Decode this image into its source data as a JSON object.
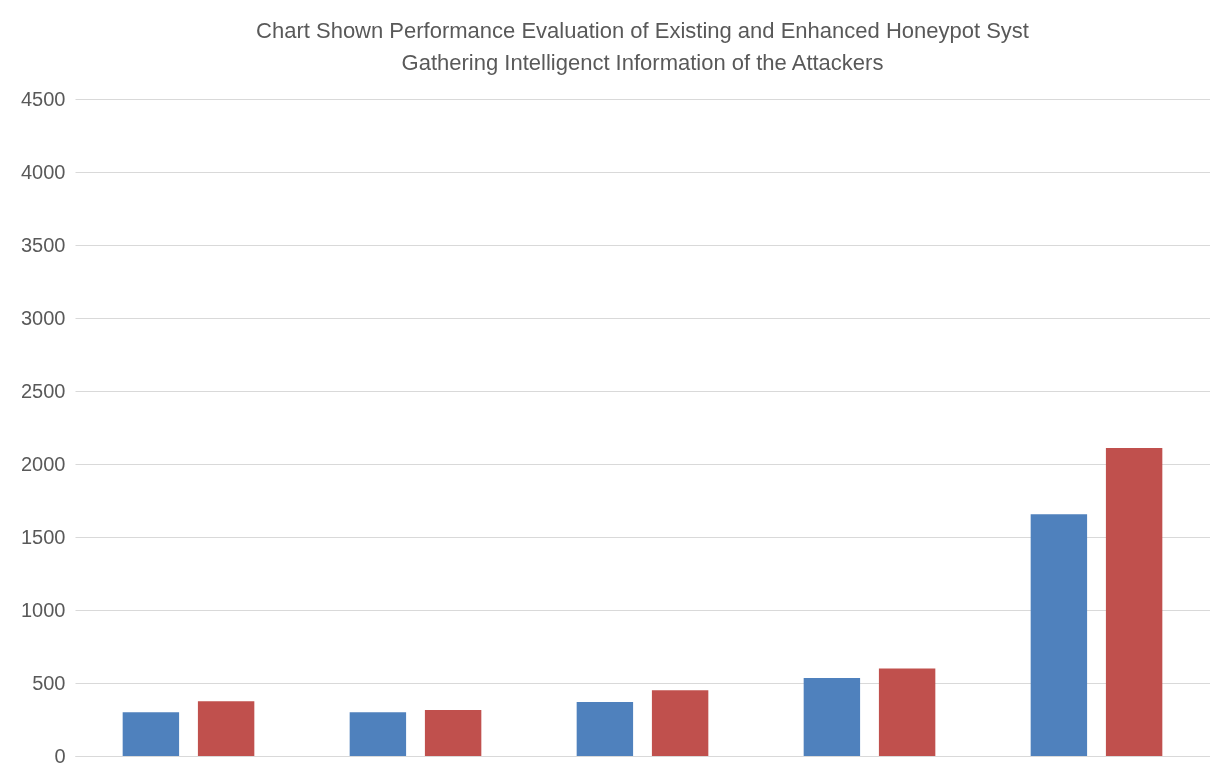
{
  "chart_data": {
    "type": "bar",
    "title": "Chart Shown Performance Evaluation of Existing and Enhanced Honeypot Syst\nGathering Intelligenct Information of the Attackers",
    "categories": [
      null,
      null,
      null,
      null,
      null
    ],
    "series": [
      {
        "color": "#4f81bd",
        "values": [
          300,
          300,
          370,
          535,
          1655
        ]
      },
      {
        "color": "#c0504d",
        "values": [
          375,
          315,
          450,
          600,
          2110
        ]
      }
    ],
    "ylim": [
      0,
      4500
    ],
    "yticks": [
      0,
      500,
      1000,
      1500,
      2000,
      2500,
      3000,
      3500,
      4000,
      4500
    ],
    "grid": "y"
  }
}
